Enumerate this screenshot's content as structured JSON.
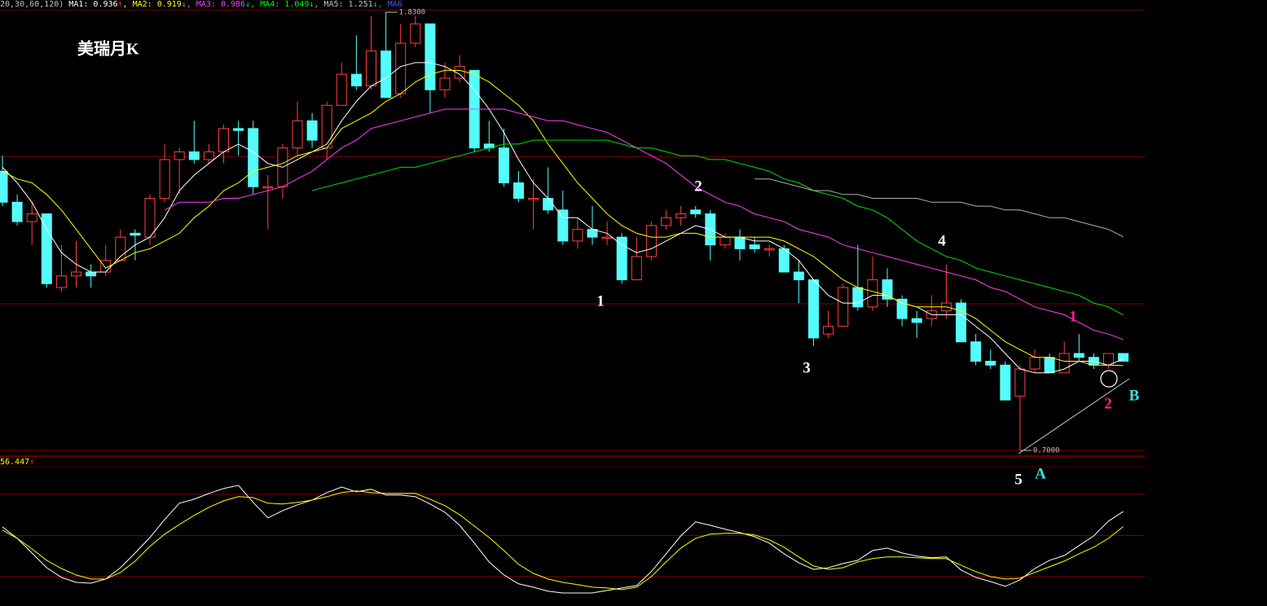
{
  "chart_data": [
    {
      "type": "candlestick",
      "title": "美瑞月K",
      "header": [
        {
          "text": "20,30,60,120)",
          "color": "#c0c0c0"
        },
        {
          "text": " MA1: 0.936",
          "color": "#ffffff"
        },
        {
          "text": "↑",
          "color": "#ff3030"
        },
        {
          "text": ", MA2: 0.919",
          "color": "#ffff00"
        },
        {
          "text": "↓",
          "color": "#00ff00"
        },
        {
          "text": ", MA3: 0.986",
          "color": "#ff40ff"
        },
        {
          "text": "↓",
          "color": "#00ff00"
        },
        {
          "text": ", MA4: 1.049",
          "color": "#00ff00"
        },
        {
          "text": "↓",
          "color": "#00ff00"
        },
        {
          "text": ", MA5: 1.251",
          "color": "#c0c0c0"
        },
        {
          "text": "↓",
          "color": "#00ff00"
        },
        {
          "text": ", MA6",
          "color": "#4060ff"
        }
      ],
      "ylim": [
        0.7,
        1.83
      ],
      "grid_levels": [
        0.7,
        1.078,
        1.458,
        1.836
      ],
      "up_color": "#ff4040",
      "down_color": "#54fcfc",
      "open": [
        1.42,
        1.34,
        1.29,
        1.31,
        1.12,
        1.15,
        1.16,
        1.16,
        1.19,
        1.26,
        1.25,
        1.35,
        1.45,
        1.47,
        1.45,
        1.47,
        1.53,
        1.53,
        1.38,
        1.38,
        1.48,
        1.55,
        1.48,
        1.59,
        1.67,
        1.64,
        1.73,
        1.62,
        1.75,
        1.8,
        1.63,
        1.66,
        1.68,
        1.49,
        1.48,
        1.39,
        1.35,
        1.35,
        1.32,
        1.24,
        1.27,
        1.25,
        1.25,
        1.14,
        1.2,
        1.28,
        1.3,
        1.32,
        1.31,
        1.23,
        1.25,
        1.23,
        1.22,
        1.22,
        1.16,
        1.14,
        1.0,
        1.02,
        1.12,
        1.07,
        1.14,
        1.09,
        1.04,
        1.04,
        1.06,
        1.08,
        0.98,
        0.93,
        0.92,
        0.84,
        0.91,
        0.94,
        0.9,
        0.95,
        0.94,
        0.92,
        0.95
      ],
      "high": [
        1.46,
        1.36,
        1.34,
        1.31,
        1.23,
        1.24,
        1.18,
        1.23,
        1.27,
        1.27,
        1.36,
        1.49,
        1.48,
        1.55,
        1.49,
        1.54,
        1.55,
        1.55,
        1.41,
        1.49,
        1.6,
        1.57,
        1.6,
        1.7,
        1.77,
        1.82,
        1.83,
        1.8,
        1.82,
        1.8,
        1.7,
        1.72,
        1.68,
        1.55,
        1.53,
        1.42,
        1.4,
        1.43,
        1.37,
        1.3,
        1.33,
        1.29,
        1.26,
        1.25,
        1.29,
        1.32,
        1.33,
        1.33,
        1.32,
        1.26,
        1.27,
        1.25,
        1.23,
        1.23,
        1.19,
        1.14,
        1.06,
        1.13,
        1.23,
        1.2,
        1.17,
        1.1,
        1.06,
        1.1,
        1.18,
        1.09,
        1.0,
        0.96,
        0.93,
        0.92,
        0.96,
        0.95,
        0.98,
        1.0,
        0.95,
        0.95,
        0.95
      ],
      "low": [
        1.33,
        1.28,
        1.23,
        1.12,
        1.11,
        1.12,
        1.12,
        1.15,
        1.19,
        1.19,
        1.23,
        1.34,
        1.36,
        1.44,
        1.44,
        1.44,
        1.46,
        1.36,
        1.27,
        1.35,
        1.46,
        1.48,
        1.45,
        1.59,
        1.63,
        1.63,
        1.61,
        1.61,
        1.74,
        1.57,
        1.61,
        1.65,
        1.47,
        1.47,
        1.38,
        1.34,
        1.27,
        1.31,
        1.23,
        1.22,
        1.23,
        1.23,
        1.13,
        1.14,
        1.19,
        1.27,
        1.28,
        1.3,
        1.19,
        1.22,
        1.19,
        1.21,
        1.2,
        1.16,
        1.08,
        0.97,
        0.99,
        1.02,
        1.06,
        1.06,
        1.07,
        1.02,
        0.99,
        1.02,
        1.04,
        0.98,
        0.92,
        0.91,
        0.83,
        0.7,
        0.9,
        0.9,
        0.9,
        0.93,
        0.91,
        0.91,
        0.93
      ],
      "close": [
        1.34,
        1.29,
        1.31,
        1.13,
        1.15,
        1.16,
        1.15,
        1.19,
        1.25,
        1.255,
        1.35,
        1.45,
        1.47,
        1.45,
        1.47,
        1.53,
        1.525,
        1.38,
        1.38,
        1.48,
        1.55,
        1.5,
        1.59,
        1.67,
        1.64,
        1.73,
        1.61,
        1.75,
        1.8,
        1.63,
        1.66,
        1.69,
        1.48,
        1.48,
        1.39,
        1.35,
        1.35,
        1.32,
        1.24,
        1.27,
        1.25,
        1.25,
        1.14,
        1.2,
        1.28,
        1.3,
        1.31,
        1.31,
        1.23,
        1.25,
        1.22,
        1.22,
        1.22,
        1.16,
        1.14,
        0.99,
        1.02,
        1.12,
        1.07,
        1.14,
        1.09,
        1.04,
        1.03,
        1.06,
        1.08,
        0.98,
        0.93,
        0.92,
        0.83,
        0.91,
        0.94,
        0.9,
        0.95,
        0.94,
        0.92,
        0.95,
        0.93
      ],
      "series": [
        {
          "color": "#ffffff",
          "values": [
            1.43,
            1.39,
            1.34,
            1.27,
            1.21,
            1.18,
            1.16,
            1.16,
            1.2,
            1.23,
            1.25,
            1.3,
            1.37,
            1.41,
            1.44,
            1.47,
            1.49,
            1.47,
            1.44,
            1.43,
            1.45,
            1.47,
            1.49,
            1.55,
            1.6,
            1.64,
            1.66,
            1.69,
            1.7,
            1.7,
            1.69,
            1.67,
            1.63,
            1.58,
            1.52,
            1.45,
            1.39,
            1.35,
            1.3,
            1.3,
            1.27,
            1.26,
            1.23,
            1.21,
            1.22,
            1.24,
            1.26,
            1.28,
            1.27,
            1.25,
            1.25,
            1.24,
            1.24,
            1.22,
            1.19,
            1.14,
            1.1,
            1.08,
            1.08,
            1.1,
            1.1,
            1.08,
            1.07,
            1.05,
            1.05,
            1.05,
            1.02,
            0.99,
            0.95,
            0.91,
            0.9,
            0.9,
            0.91,
            0.93,
            0.93,
            0.92,
            0.936
          ]
        },
        {
          "color": "#ffff00",
          "values": [
            1.42,
            1.4,
            1.39,
            1.36,
            1.32,
            1.27,
            1.22,
            1.17,
            1.19,
            1.21,
            1.22,
            1.24,
            1.26,
            1.3,
            1.33,
            1.37,
            1.39,
            1.42,
            1.43,
            1.44,
            1.46,
            1.47,
            1.48,
            1.53,
            1.55,
            1.57,
            1.6,
            1.62,
            1.65,
            1.67,
            1.68,
            1.68,
            1.67,
            1.65,
            1.62,
            1.59,
            1.55,
            1.49,
            1.44,
            1.39,
            1.35,
            1.31,
            1.28,
            1.26,
            1.25,
            1.25,
            1.26,
            1.26,
            1.25,
            1.25,
            1.25,
            1.25,
            1.25,
            1.24,
            1.22,
            1.2,
            1.17,
            1.14,
            1.12,
            1.11,
            1.1,
            1.08,
            1.07,
            1.07,
            1.07,
            1.06,
            1.04,
            1.01,
            0.98,
            0.96,
            0.94,
            0.94,
            0.93,
            0.93,
            0.92,
            0.92,
            0.919
          ]
        },
        {
          "color": "#ff40ff",
          "values": [
            null,
            null,
            null,
            null,
            null,
            null,
            null,
            null,
            null,
            null,
            null,
            1.32,
            1.34,
            1.34,
            1.34,
            1.35,
            1.35,
            1.36,
            1.37,
            1.38,
            1.4,
            1.42,
            1.45,
            1.48,
            1.5,
            1.53,
            1.54,
            1.55,
            1.56,
            1.57,
            1.58,
            1.58,
            1.58,
            1.58,
            1.58,
            1.57,
            1.56,
            1.55,
            1.55,
            1.54,
            1.53,
            1.52,
            1.5,
            1.48,
            1.46,
            1.44,
            1.41,
            1.38,
            1.36,
            1.34,
            1.33,
            1.31,
            1.3,
            1.29,
            1.27,
            1.26,
            1.25,
            1.23,
            1.22,
            1.21,
            1.2,
            1.19,
            1.18,
            1.17,
            1.16,
            1.15,
            1.14,
            1.12,
            1.11,
            1.09,
            1.07,
            1.06,
            1.05,
            1.03,
            1.01,
            1.0,
            0.986
          ]
        },
        {
          "color": "#00e000",
          "values": [
            null,
            null,
            null,
            null,
            null,
            null,
            null,
            null,
            null,
            null,
            null,
            null,
            null,
            null,
            null,
            null,
            null,
            null,
            null,
            null,
            null,
            1.37,
            1.38,
            1.39,
            1.4,
            1.41,
            1.42,
            1.43,
            1.43,
            1.44,
            1.45,
            1.46,
            1.47,
            1.48,
            1.49,
            1.49,
            1.5,
            1.5,
            1.5,
            1.5,
            1.5,
            1.5,
            1.49,
            1.48,
            1.48,
            1.47,
            1.46,
            1.46,
            1.45,
            1.45,
            1.44,
            1.43,
            1.42,
            1.4,
            1.39,
            1.37,
            1.36,
            1.35,
            1.33,
            1.32,
            1.3,
            1.27,
            1.24,
            1.22,
            1.2,
            1.19,
            1.17,
            1.16,
            1.15,
            1.14,
            1.13,
            1.12,
            1.11,
            1.1,
            1.08,
            1.07,
            1.049
          ]
        },
        {
          "color": "#b0b0b0",
          "values": [
            null,
            null,
            null,
            null,
            null,
            null,
            null,
            null,
            null,
            null,
            null,
            null,
            null,
            null,
            null,
            null,
            null,
            null,
            null,
            null,
            null,
            null,
            null,
            null,
            null,
            null,
            null,
            null,
            null,
            null,
            null,
            null,
            null,
            null,
            null,
            null,
            null,
            null,
            null,
            null,
            null,
            null,
            null,
            null,
            null,
            null,
            null,
            null,
            null,
            null,
            null,
            1.4,
            1.4,
            1.39,
            1.38,
            1.37,
            1.37,
            1.36,
            1.36,
            1.35,
            1.35,
            1.35,
            1.35,
            1.34,
            1.34,
            1.34,
            1.33,
            1.33,
            1.32,
            1.32,
            1.31,
            1.3,
            1.3,
            1.29,
            1.28,
            1.27,
            1.251
          ]
        }
      ],
      "extreme_labels": [
        "1.8300",
        "0.7000"
      ],
      "annotations": [
        {
          "text": "1",
          "color": "#ffffff"
        },
        {
          "text": "2",
          "color": "#ffffff"
        },
        {
          "text": "3",
          "color": "#ffffff"
        },
        {
          "text": "4",
          "color": "#ffffff"
        },
        {
          "text": "5",
          "color": "#ffffff"
        },
        {
          "text": "1",
          "color": "#ff2090"
        },
        {
          "text": "2",
          "color": "#ff2090"
        },
        {
          "text": "A",
          "color": "#40e0e0"
        },
        {
          "text": "B",
          "color": "#40e0e0"
        }
      ]
    },
    {
      "type": "line",
      "header": [
        {
          "text": "56.447",
          "color": "#ffff00"
        },
        {
          "text": "↑",
          "color": "#ff3030"
        }
      ],
      "ylim": [
        0,
        106
      ],
      "grid_levels": [
        20,
        50,
        80
      ],
      "series": [
        {
          "color": "#ffffff",
          "values": [
            56.2,
            47.9,
            37.2,
            26.5,
            19.4,
            15.8,
            15.2,
            18.2,
            26.5,
            37.2,
            48.5,
            61.6,
            73.5,
            76.4,
            80.6,
            84.2,
            86.5,
            74.1,
            62.8,
            68.1,
            72.3,
            75.8,
            81.2,
            85.3,
            81.8,
            83.6,
            79.4,
            79.4,
            78.2,
            72.9,
            66.9,
            57.4,
            44.4,
            30.7,
            21.2,
            14.7,
            12.3,
            9.3,
            8.1,
            8.1,
            8.1,
            9.9,
            11.7,
            13.5,
            23.6,
            36.6,
            49.7,
            59.8,
            57.4,
            54.5,
            52.1,
            49.1,
            44.4,
            36.6,
            30.1,
            25.3,
            26.5,
            29.5,
            31.9,
            39.0,
            40.8,
            37.2,
            34.9,
            33.7,
            34.3,
            24.8,
            19.4,
            16.4,
            12.9,
            17.6,
            25.9,
            31.9,
            35.4,
            42.6,
            49.7,
            60.4,
            67.5
          ]
        },
        {
          "color": "#ffff00",
          "values": [
            53.9,
            47.9,
            40.2,
            31.9,
            25.9,
            21.2,
            18.2,
            18.2,
            23.0,
            31.3,
            42.0,
            50.9,
            58.0,
            64.6,
            70.5,
            75.2,
            78.2,
            77.6,
            73.5,
            72.9,
            74.1,
            75.8,
            78.2,
            81.2,
            82.4,
            81.2,
            80.6,
            80.6,
            80.6,
            76.4,
            71.7,
            65.1,
            56.8,
            48.5,
            39.0,
            28.9,
            22.4,
            18.2,
            15.8,
            14.1,
            12.3,
            11.7,
            10.5,
            12.3,
            20.0,
            30.7,
            40.8,
            47.9,
            50.9,
            51.5,
            51.5,
            50.3,
            46.7,
            41.4,
            34.3,
            27.7,
            25.3,
            26.5,
            30.7,
            33.1,
            34.3,
            34.3,
            33.7,
            33.1,
            33.1,
            28.3,
            23.6,
            20.0,
            18.2,
            18.8,
            23.0,
            27.1,
            31.3,
            36.6,
            41.4,
            47.9,
            56.447
          ]
        }
      ]
    }
  ]
}
